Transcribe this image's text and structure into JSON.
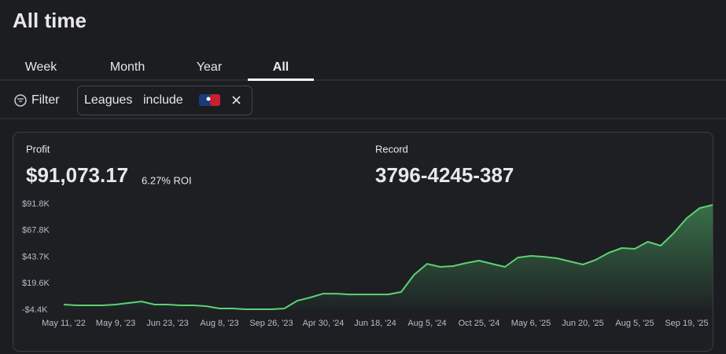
{
  "header": {
    "title": "All time"
  },
  "tabs": [
    "Week",
    "Month",
    "Year",
    "All"
  ],
  "filter": {
    "label": "Filter",
    "chip": {
      "field": "Leagues",
      "operator": "include"
    }
  },
  "stats": [
    {
      "label": "Profit",
      "value": "$91,073.17",
      "note": "6.27% ROI"
    },
    {
      "label": "Record",
      "value": "3796-4245-387"
    }
  ],
  "chart_data": {
    "type": "area",
    "color": "#5cd174",
    "x": [
      "May 11, '22",
      null,
      null,
      null,
      "May 9, '23",
      null,
      null,
      null,
      "Jun 23, '23",
      null,
      null,
      null,
      "Aug 8, '23",
      null,
      null,
      null,
      "Sep 26, '23",
      null,
      null,
      null,
      "Apr 30, '24",
      null,
      null,
      null,
      "Jun 18, '24",
      null,
      null,
      null,
      "Aug 5, '24",
      null,
      null,
      null,
      "Oct 25, '24",
      null,
      null,
      null,
      "May 6, '25",
      null,
      null,
      null,
      "Jun 20, '25",
      null,
      null,
      null,
      "Aug 5, '25",
      null,
      null,
      null,
      "Sep 19, '25",
      null,
      null
    ],
    "values": [
      600,
      -100,
      -100,
      -100,
      600,
      2000,
      3400,
      600,
      600,
      -100,
      -100,
      -900,
      -3000,
      -3000,
      -3700,
      -3700,
      -3700,
      -3000,
      4100,
      7000,
      10500,
      10500,
      9800,
      9800,
      9800,
      9800,
      12000,
      27700,
      37600,
      34800,
      35500,
      38300,
      40500,
      37600,
      34800,
      43300,
      44800,
      44000,
      42600,
      39800,
      36900,
      41200,
      47600,
      51900,
      51200,
      57600,
      54000,
      65400,
      79000,
      88200,
      91073
    ],
    "ylim": [
      -4400,
      91800
    ],
    "yticks": [
      {
        "value": -4400,
        "label": "-$4.4K"
      },
      {
        "value": 19600,
        "label": "$19.6K"
      },
      {
        "value": 43700,
        "label": "$43.7K"
      },
      {
        "value": 67800,
        "label": "$67.8K"
      },
      {
        "value": 91800,
        "label": "$91.8K"
      }
    ]
  }
}
